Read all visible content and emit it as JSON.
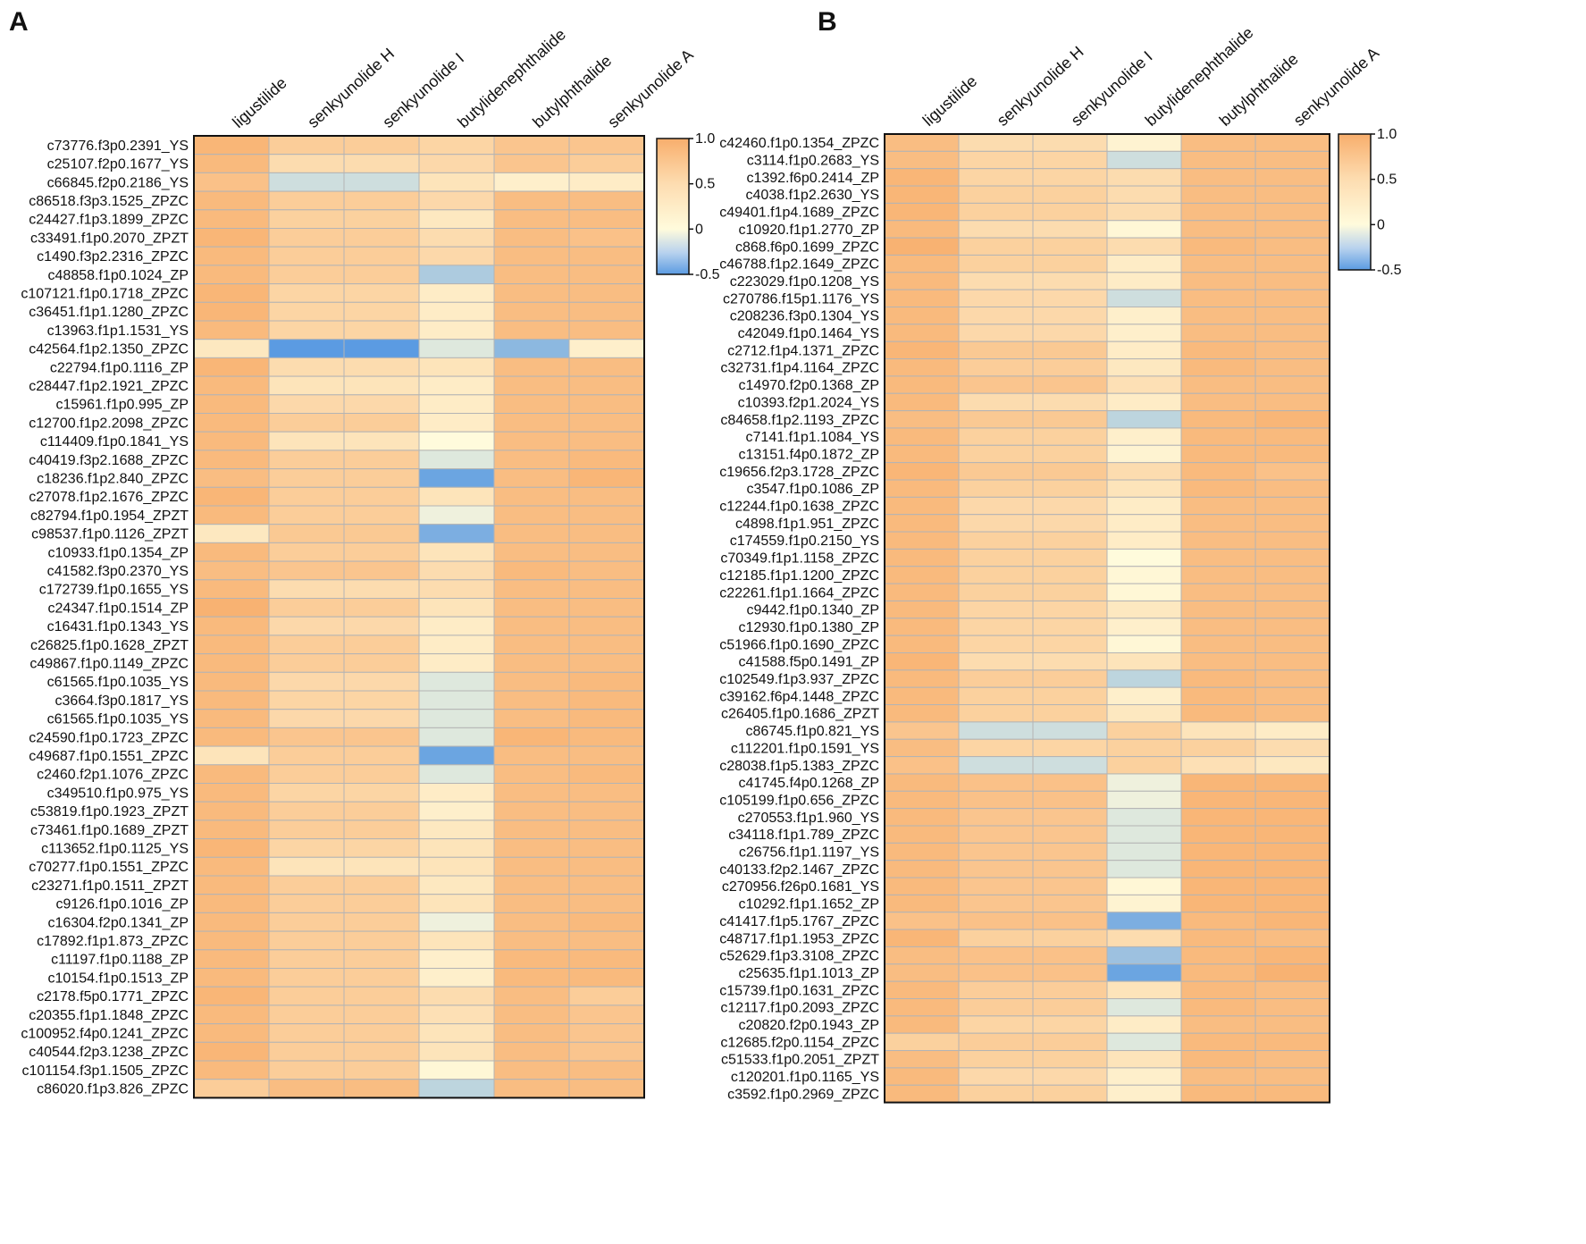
{
  "color_scale": {
    "low": "#5b9be2",
    "mid": "#fffbdc",
    "high": "#f8ae6c",
    "domain": [
      -0.5,
      0,
      1.0
    ]
  },
  "chart_data": [
    {
      "type": "heatmap",
      "panel": "A",
      "columns": [
        "ligustilide",
        "senkyunolide H",
        "senkyunolide I",
        "butylidenephthalide",
        "butylphthalide",
        "senkyunolide A"
      ],
      "rows": [
        "c73776.f3p0.2391_YS",
        "c25107.f2p0.1677_YS",
        "c66845.f2p0.2186_YS",
        "c86518.f3p3.1525_ZPZC",
        "c24427.f1p3.1899_ZPZC",
        "c33491.f1p0.2070_ZPZT",
        "c1490.f3p2.2316_ZPZC",
        "c48858.f1p0.1024_ZP",
        "c107121.f1p0.1718_ZPZC",
        "c36451.f1p1.1280_ZPZC",
        "c13963.f1p1.1531_YS",
        "c42564.f1p2.1350_ZPZC",
        "c22794.f1p0.1116_ZP",
        "c28447.f1p2.1921_ZPZC",
        "c15961.f1p0.995_ZP",
        "c12700.f1p2.2098_ZPZC",
        "c114409.f1p0.1841_YS",
        "c40419.f3p2.1688_ZPZC",
        "c18236.f1p2.840_ZPZC",
        "c27078.f1p2.1676_ZPZC",
        "c82794.f1p0.1954_ZPZT",
        "c98537.f1p0.1126_ZPZT",
        "c10933.f1p0.1354_ZP",
        "c41582.f3p0.2370_YS",
        "c172739.f1p0.1655_YS",
        "c24347.f1p0.1514_ZP",
        "c16431.f1p0.1343_YS",
        "c26825.f1p0.1628_ZPZT",
        "c49867.f1p0.1149_ZPZC",
        "c61565.f1p0.1035_YS",
        "c3664.f3p0.1817_YS",
        "c61565.f1p0.1035_YS",
        "c24590.f1p0.1723_ZPZC",
        "c49687.f1p0.1551_ZPZC",
        "c2460.f2p1.1076_ZPZC",
        "c349510.f1p0.975_YS",
        "c53819.f1p0.1923_ZPZT",
        "c73461.f1p0.1689_ZPZT",
        "c113652.f1p0.1125_YS",
        "c70277.f1p0.1551_ZPZC",
        "c23271.f1p0.1511_ZPZT",
        "c9126.f1p0.1016_ZP",
        "c16304.f2p0.1341_ZP",
        "c17892.f1p1.873_ZPZC",
        "c11197.f1p0.1188_ZP",
        "c10154.f1p0.1513_ZP",
        "c2178.f5p0.1771_ZPZC",
        "c20355.f1p1.1848_ZPZC",
        "c100952.f4p0.1241_ZPZC",
        "c40544.f2p3.1238_ZPZC",
        "c101154.f3p1.1505_ZPZC",
        "c86020.f1p3.826_ZPZC"
      ],
      "values": [
        [
          0.9,
          0.6,
          0.6,
          0.5,
          0.7,
          0.7
        ],
        [
          0.85,
          0.4,
          0.4,
          0.45,
          0.7,
          0.6
        ],
        [
          0.75,
          -0.15,
          -0.15,
          0.3,
          0.15,
          0.2
        ],
        [
          0.85,
          0.6,
          0.6,
          0.45,
          0.8,
          0.8
        ],
        [
          0.85,
          0.55,
          0.55,
          0.25,
          0.8,
          0.8
        ],
        [
          0.9,
          0.6,
          0.6,
          0.4,
          0.8,
          0.75
        ],
        [
          0.85,
          0.6,
          0.6,
          0.45,
          0.8,
          0.8
        ],
        [
          0.85,
          0.6,
          0.6,
          -0.25,
          0.8,
          0.8
        ],
        [
          0.9,
          0.5,
          0.5,
          0.2,
          0.8,
          0.8
        ],
        [
          0.9,
          0.5,
          0.5,
          0.2,
          0.8,
          0.8
        ],
        [
          0.85,
          0.5,
          0.5,
          0.2,
          0.8,
          0.8
        ],
        [
          0.25,
          -0.55,
          -0.55,
          -0.1,
          -0.35,
          0.15
        ],
        [
          0.9,
          0.4,
          0.4,
          0.3,
          0.8,
          0.8
        ],
        [
          0.85,
          0.3,
          0.3,
          0.2,
          0.8,
          0.8
        ],
        [
          0.85,
          0.45,
          0.45,
          0.2,
          0.8,
          0.8
        ],
        [
          0.85,
          0.6,
          0.6,
          0.2,
          0.8,
          0.8
        ],
        [
          0.85,
          0.3,
          0.3,
          0.0,
          0.8,
          0.8
        ],
        [
          0.85,
          0.6,
          0.6,
          -0.1,
          0.8,
          0.85
        ],
        [
          0.8,
          0.6,
          0.6,
          -0.45,
          0.8,
          0.9
        ],
        [
          0.9,
          0.6,
          0.6,
          0.3,
          0.8,
          0.8
        ],
        [
          0.85,
          0.6,
          0.6,
          -0.05,
          0.8,
          0.8
        ],
        [
          0.25,
          0.65,
          0.65,
          -0.4,
          0.8,
          0.8
        ],
        [
          0.85,
          0.6,
          0.6,
          0.3,
          0.8,
          0.8
        ],
        [
          0.8,
          0.7,
          0.7,
          0.4,
          0.85,
          0.8
        ],
        [
          0.85,
          0.4,
          0.4,
          0.4,
          0.8,
          0.8
        ],
        [
          0.95,
          0.6,
          0.6,
          0.3,
          0.8,
          0.8
        ],
        [
          0.85,
          0.45,
          0.45,
          0.2,
          0.8,
          0.8
        ],
        [
          0.85,
          0.6,
          0.6,
          0.2,
          0.8,
          0.8
        ],
        [
          0.85,
          0.6,
          0.6,
          0.2,
          0.8,
          0.8
        ],
        [
          0.85,
          0.45,
          0.45,
          -0.1,
          0.8,
          0.85
        ],
        [
          0.85,
          0.5,
          0.5,
          -0.1,
          0.8,
          0.85
        ],
        [
          0.85,
          0.45,
          0.45,
          -0.1,
          0.8,
          0.85
        ],
        [
          0.85,
          0.7,
          0.7,
          -0.1,
          0.9,
          0.85
        ],
        [
          0.3,
          0.6,
          0.6,
          -0.45,
          0.8,
          0.8
        ],
        [
          0.85,
          0.6,
          0.6,
          -0.1,
          0.8,
          0.85
        ],
        [
          0.85,
          0.5,
          0.5,
          0.2,
          0.8,
          0.8
        ],
        [
          0.85,
          0.6,
          0.6,
          0.15,
          0.8,
          0.8
        ],
        [
          0.85,
          0.6,
          0.6,
          0.25,
          0.8,
          0.8
        ],
        [
          0.9,
          0.5,
          0.5,
          0.3,
          0.8,
          0.8
        ],
        [
          0.85,
          0.3,
          0.3,
          0.3,
          0.8,
          0.8
        ],
        [
          0.85,
          0.6,
          0.6,
          0.25,
          0.8,
          0.8
        ],
        [
          0.85,
          0.6,
          0.6,
          0.3,
          0.8,
          0.8
        ],
        [
          0.85,
          0.6,
          0.6,
          -0.05,
          0.8,
          0.85
        ],
        [
          0.85,
          0.6,
          0.6,
          0.3,
          0.8,
          0.8
        ],
        [
          0.85,
          0.6,
          0.6,
          0.15,
          0.85,
          0.85
        ],
        [
          0.85,
          0.6,
          0.6,
          0.15,
          0.85,
          0.85
        ],
        [
          0.9,
          0.6,
          0.6,
          0.4,
          0.8,
          0.6
        ],
        [
          0.85,
          0.6,
          0.6,
          0.35,
          0.8,
          0.7
        ],
        [
          0.85,
          0.6,
          0.6,
          0.3,
          0.8,
          0.7
        ],
        [
          0.9,
          0.6,
          0.6,
          0.3,
          0.8,
          0.7
        ],
        [
          0.85,
          0.6,
          0.6,
          0.05,
          0.8,
          0.8
        ],
        [
          0.6,
          0.8,
          0.8,
          -0.2,
          0.8,
          0.8
        ]
      ],
      "colorbar": {
        "range": [
          -0.5,
          1.0
        ],
        "ticks": [
          "1.0",
          "0.5",
          "0",
          "-0.5"
        ],
        "tick_values": [
          1.0,
          0.5,
          0,
          -0.5
        ]
      }
    },
    {
      "type": "heatmap",
      "panel": "B",
      "columns": [
        "ligustilide",
        "senkyunolide H",
        "senkyunolide I",
        "butylidenephthalide",
        "butylphthalide",
        "senkyunolide A"
      ],
      "rows": [
        "c42460.f1p0.1354_ZPZC",
        "c3114.f1p0.2683_YS",
        "c1392.f6p0.2414_ZP",
        "c4038.f1p2.2630_YS",
        "c49401.f1p4.1689_ZPZC",
        "c10920.f1p1.2770_ZP",
        "c868.f6p0.1699_ZPZC",
        "c46788.f1p2.1649_ZPZC",
        "c223029.f1p0.1208_YS",
        "c270786.f15p1.1176_YS",
        "c208236.f3p0.1304_YS",
        "c42049.f1p0.1464_YS",
        "c2712.f1p4.1371_ZPZC",
        "c32731.f1p4.1164_ZPZC",
        "c14970.f2p0.1368_ZP",
        "c10393.f2p1.2024_YS",
        "c84658.f1p2.1193_ZPZC",
        "c7141.f1p1.1084_YS",
        "c13151.f4p0.1872_ZP",
        "c19656.f2p3.1728_ZPZC",
        "c3547.f1p0.1086_ZP",
        "c12244.f1p0.1638_ZPZC",
        "c4898.f1p1.951_ZPZC",
        "c174559.f1p0.2150_YS",
        "c70349.f1p1.1158_ZPZC",
        "c12185.f1p1.1200_ZPZC",
        "c22261.f1p1.1664_ZPZC",
        "c9442.f1p0.1340_ZP",
        "c12930.f1p0.1380_ZP",
        "c51966.f1p0.1690_ZPZC",
        "c41588.f5p0.1491_ZP",
        "c102549.f1p3.937_ZPZC",
        "c39162.f6p4.1448_ZPZC",
        "c26405.f1p0.1686_ZPZT",
        "c86745.f1p0.821_YS",
        "c112201.f1p0.1591_YS",
        "c28038.f1p5.1383_ZPZC",
        "c41745.f4p0.1268_ZP",
        "c105199.f1p0.656_ZPZC",
        "c270553.f1p1.960_YS",
        "c34118.f1p1.789_ZPZC",
        "c26756.f1p1.1197_YS",
        "c40133.f2p2.1467_ZPZC",
        "c270956.f26p0.1681_YS",
        "c10292.f1p1.1652_ZP",
        "c41417.f1p5.1767_ZPZC",
        "c48717.f1p1.1953_ZPZC",
        "c52629.f1p3.3108_ZPZC",
        "c25635.f1p1.1013_ZP",
        "c15739.f1p0.1631_ZPZC",
        "c12117.f1p0.2093_ZPZC",
        "c20820.f2p0.1943_ZP",
        "c12685.f2p0.1154_ZPZC",
        "c51533.f1p0.2051_ZPZT",
        "c120201.f1p0.1165_YS",
        "c3592.f1p0.2969_ZPZC"
      ],
      "values": [
        [
          0.8,
          0.4,
          0.4,
          0.1,
          0.8,
          0.8
        ],
        [
          0.8,
          0.5,
          0.5,
          -0.15,
          0.8,
          0.8
        ],
        [
          0.9,
          0.5,
          0.5,
          0.4,
          0.8,
          0.8
        ],
        [
          0.9,
          0.55,
          0.55,
          0.4,
          0.8,
          0.8
        ],
        [
          0.9,
          0.55,
          0.55,
          0.4,
          0.8,
          0.8
        ],
        [
          0.85,
          0.4,
          0.4,
          0.05,
          0.8,
          0.8
        ],
        [
          0.95,
          0.55,
          0.55,
          0.4,
          0.85,
          0.8
        ],
        [
          0.85,
          0.55,
          0.55,
          0.2,
          0.8,
          0.8
        ],
        [
          0.85,
          0.4,
          0.4,
          0.2,
          0.8,
          0.8
        ],
        [
          0.85,
          0.45,
          0.45,
          -0.15,
          0.8,
          0.8
        ],
        [
          0.85,
          0.45,
          0.45,
          0.15,
          0.8,
          0.8
        ],
        [
          0.85,
          0.45,
          0.45,
          0.15,
          0.8,
          0.8
        ],
        [
          0.9,
          0.65,
          0.65,
          0.2,
          0.85,
          0.8
        ],
        [
          0.85,
          0.6,
          0.6,
          0.25,
          0.85,
          0.8
        ],
        [
          0.85,
          0.7,
          0.7,
          0.35,
          0.8,
          0.8
        ],
        [
          0.85,
          0.4,
          0.4,
          0.2,
          0.8,
          0.8
        ],
        [
          0.8,
          0.65,
          0.65,
          -0.2,
          0.85,
          0.9
        ],
        [
          0.85,
          0.55,
          0.55,
          0.15,
          0.85,
          0.85
        ],
        [
          0.85,
          0.55,
          0.55,
          0.1,
          0.85,
          0.85
        ],
        [
          0.9,
          0.65,
          0.65,
          0.4,
          0.85,
          0.75
        ],
        [
          0.85,
          0.55,
          0.55,
          0.3,
          0.85,
          0.8
        ],
        [
          0.85,
          0.45,
          0.45,
          0.2,
          0.8,
          0.8
        ],
        [
          0.85,
          0.45,
          0.45,
          0.2,
          0.8,
          0.8
        ],
        [
          0.85,
          0.55,
          0.55,
          0.2,
          0.8,
          0.8
        ],
        [
          0.85,
          0.55,
          0.55,
          0.0,
          0.8,
          0.8
        ],
        [
          0.85,
          0.55,
          0.55,
          0.05,
          0.8,
          0.8
        ],
        [
          0.85,
          0.55,
          0.55,
          0.05,
          0.8,
          0.8
        ],
        [
          0.85,
          0.5,
          0.5,
          0.25,
          0.8,
          0.8
        ],
        [
          0.85,
          0.5,
          0.5,
          0.15,
          0.8,
          0.8
        ],
        [
          0.85,
          0.5,
          0.5,
          0.05,
          0.8,
          0.8
        ],
        [
          0.9,
          0.4,
          0.4,
          0.3,
          0.8,
          0.8
        ],
        [
          0.85,
          0.6,
          0.6,
          -0.2,
          0.85,
          0.8
        ],
        [
          0.85,
          0.55,
          0.55,
          0.15,
          0.85,
          0.8
        ],
        [
          0.85,
          0.55,
          0.55,
          0.25,
          0.85,
          0.8
        ],
        [
          0.7,
          -0.15,
          -0.15,
          0.55,
          0.3,
          0.2
        ],
        [
          0.8,
          0.5,
          0.5,
          0.55,
          0.55,
          0.4
        ],
        [
          0.75,
          -0.15,
          -0.15,
          0.55,
          0.35,
          0.25
        ],
        [
          0.85,
          0.75,
          0.75,
          -0.05,
          0.9,
          0.9
        ],
        [
          0.85,
          0.75,
          0.75,
          -0.05,
          0.9,
          0.9
        ],
        [
          0.85,
          0.7,
          0.7,
          -0.1,
          0.9,
          0.9
        ],
        [
          0.85,
          0.7,
          0.7,
          -0.1,
          0.9,
          0.9
        ],
        [
          0.85,
          0.7,
          0.7,
          -0.1,
          0.9,
          0.9
        ],
        [
          0.85,
          0.7,
          0.7,
          -0.1,
          0.9,
          0.9
        ],
        [
          0.85,
          0.7,
          0.7,
          0.05,
          0.9,
          0.9
        ],
        [
          0.85,
          0.7,
          0.7,
          0.1,
          0.9,
          0.9
        ],
        [
          0.75,
          0.75,
          0.75,
          -0.4,
          0.85,
          0.9
        ],
        [
          0.9,
          0.55,
          0.55,
          0.4,
          0.85,
          0.8
        ],
        [
          0.8,
          0.75,
          0.75,
          -0.3,
          0.85,
          0.9
        ],
        [
          0.8,
          0.75,
          0.75,
          -0.45,
          0.85,
          0.95
        ],
        [
          0.85,
          0.6,
          0.6,
          0.3,
          0.85,
          0.8
        ],
        [
          0.85,
          0.6,
          0.6,
          -0.1,
          0.85,
          0.8
        ],
        [
          0.85,
          0.5,
          0.5,
          0.2,
          0.8,
          0.8
        ],
        [
          0.55,
          0.6,
          0.6,
          -0.1,
          0.85,
          0.85
        ],
        [
          0.8,
          0.55,
          0.55,
          0.3,
          0.85,
          0.8
        ],
        [
          0.85,
          0.45,
          0.45,
          0.15,
          0.8,
          0.8
        ],
        [
          0.85,
          0.55,
          0.55,
          0.15,
          0.85,
          0.85
        ]
      ],
      "colorbar": {
        "range": [
          -0.5,
          1.0
        ],
        "ticks": [
          "1.0",
          "0.5",
          "0",
          "-0.5"
        ],
        "tick_values": [
          1.0,
          0.5,
          0,
          -0.5
        ]
      }
    }
  ]
}
